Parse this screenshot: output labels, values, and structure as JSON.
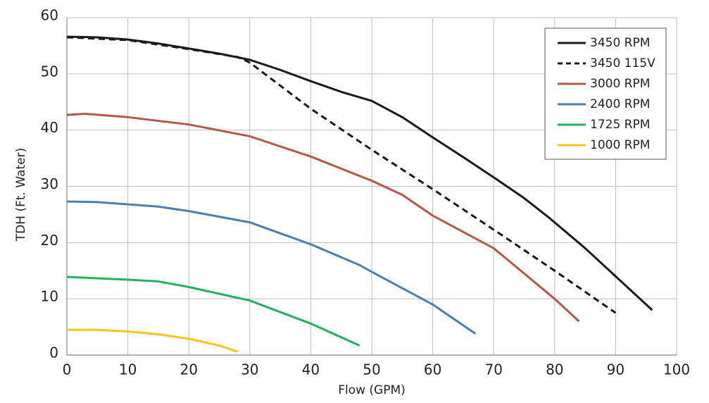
{
  "chart_data": {
    "type": "line",
    "x_label": "Flow (GPM)",
    "y_label": "TDH (Ft. Water)",
    "xlim": [
      0,
      100
    ],
    "xticks": [
      0,
      10,
      20,
      30,
      40,
      50,
      60,
      70,
      80,
      90,
      100
    ],
    "ylim": [
      0,
      60
    ],
    "yticks": [
      0,
      10,
      20,
      30,
      40,
      50,
      60
    ],
    "grid": true,
    "legend": "top-right",
    "series": [
      {
        "name": "3450 RPM",
        "color": "#1a1a1a",
        "dashed": false,
        "x": [
          0,
          5,
          10,
          15,
          20,
          25,
          30,
          35,
          40,
          45,
          50,
          55,
          60,
          65,
          70,
          75,
          79,
          85,
          90,
          96
        ],
        "values": [
          56.6,
          56.5,
          56.1,
          55.4,
          54.5,
          53.6,
          52.5,
          50.7,
          48.7,
          46.8,
          45.2,
          42.3,
          38.7,
          35.2,
          31.6,
          27.9,
          24.5,
          19,
          14,
          8
        ]
      },
      {
        "name": "3450 115V",
        "color": "#1a1a1a",
        "dashed": true,
        "x": [
          0,
          10,
          20,
          28,
          30,
          40,
          50,
          60,
          70,
          80,
          90
        ],
        "values": [
          56.5,
          56,
          54.4,
          53,
          52,
          43.8,
          36.5,
          29.5,
          22.3,
          15,
          7.5
        ]
      },
      {
        "name": "3000 RPM",
        "color": "#b5574b",
        "dashed": false,
        "x": [
          0,
          3,
          10,
          20,
          30,
          40,
          50,
          55,
          60,
          70,
          80,
          84
        ],
        "values": [
          42.7,
          42.9,
          42.3,
          41,
          38.9,
          35.3,
          31,
          28.5,
          24.8,
          19,
          10,
          6
        ]
      },
      {
        "name": "2400 RPM",
        "color": "#4a7fb0",
        "dashed": false,
        "x": [
          0,
          5,
          10,
          15,
          20,
          30,
          40,
          48,
          50,
          60,
          67
        ],
        "values": [
          27.3,
          27.2,
          26.8,
          26.4,
          25.6,
          23.6,
          19.7,
          16,
          14.8,
          9,
          3.8
        ]
      },
      {
        "name": "1725 RPM",
        "color": "#22b05a",
        "dashed": false,
        "x": [
          0,
          10,
          15,
          20,
          30,
          40,
          48
        ],
        "values": [
          13.9,
          13.4,
          13.1,
          12.1,
          9.7,
          5.6,
          1.7
        ]
      },
      {
        "name": "1000 RPM",
        "color": "#f5c518",
        "dashed": false,
        "x": [
          0,
          5,
          10,
          15,
          20,
          25,
          28
        ],
        "values": [
          4.5,
          4.5,
          4.2,
          3.7,
          2.9,
          1.7,
          0.6
        ]
      }
    ]
  }
}
